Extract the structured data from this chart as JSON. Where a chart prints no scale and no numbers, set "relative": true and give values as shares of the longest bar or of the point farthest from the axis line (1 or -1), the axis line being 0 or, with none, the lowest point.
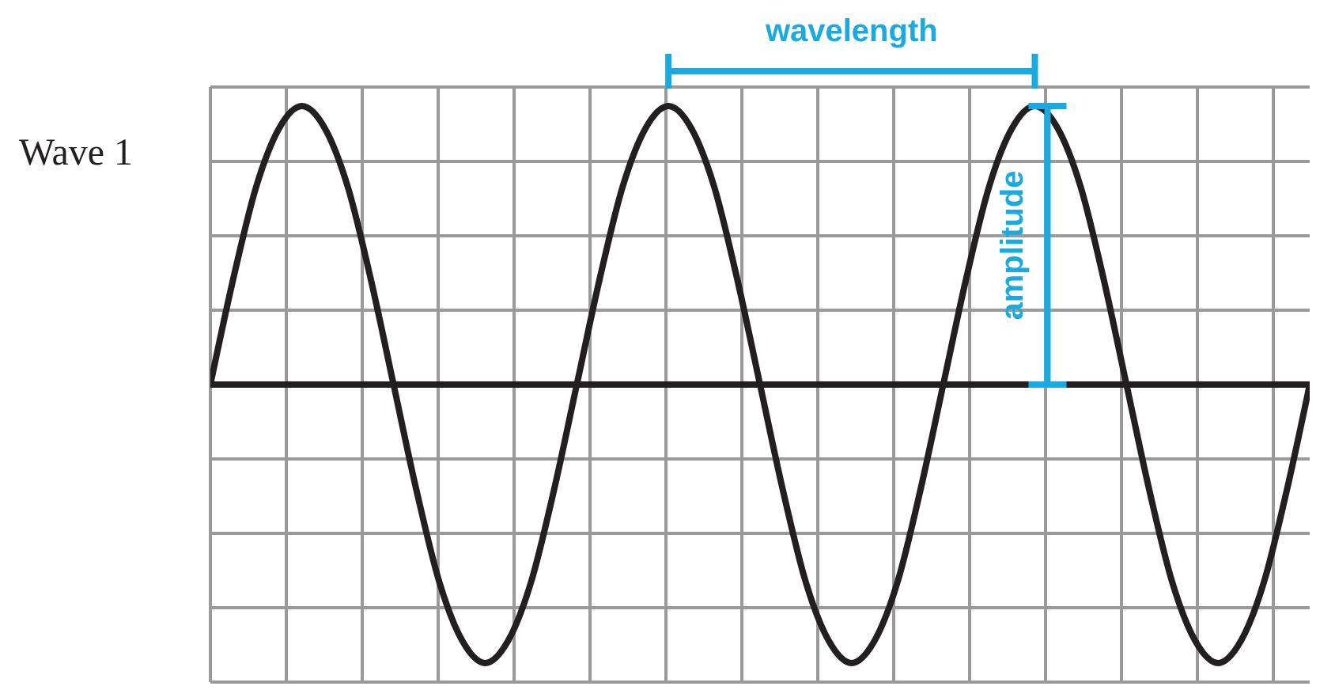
{
  "chart_data": {
    "type": "line",
    "relative": true,
    "grid": true,
    "marker": "none",
    "line_style": "solid",
    "categories": [
      null,
      null,
      null,
      null,
      null,
      null,
      null,
      null,
      null,
      null,
      null,
      null,
      null,
      null,
      null,
      null,
      null,
      null,
      null,
      null,
      null,
      null,
      null,
      null,
      null,
      null,
      null,
      null,
      null,
      null,
      null,
      null,
      null,
      null,
      null,
      null,
      null,
      null,
      null,
      null,
      null,
      null,
      null,
      null,
      null,
      null,
      null,
      null,
      null
    ],
    "series": [
      {
        "name": "Wave 1",
        "color": "#231f20",
        "values": [
          0,
          0.38,
          0.71,
          0.92,
          1,
          0.92,
          0.71,
          0.38,
          0,
          -0.38,
          -0.71,
          -0.92,
          -1,
          -0.92,
          -0.71,
          -0.38,
          0,
          0.38,
          0.71,
          0.92,
          1,
          0.92,
          0.71,
          0.38,
          0,
          -0.38,
          -0.71,
          -0.92,
          -1,
          -0.92,
          -0.71,
          -0.38,
          0,
          0.38,
          0.71,
          0.92,
          1,
          0.92,
          0.71,
          0.38,
          0,
          -0.38,
          -0.71,
          -0.92,
          -1,
          -0.92,
          -0.71,
          -0.38,
          0
        ]
      }
    ],
    "annotations": [
      "wavelength",
      "amplitude"
    ]
  }
}
